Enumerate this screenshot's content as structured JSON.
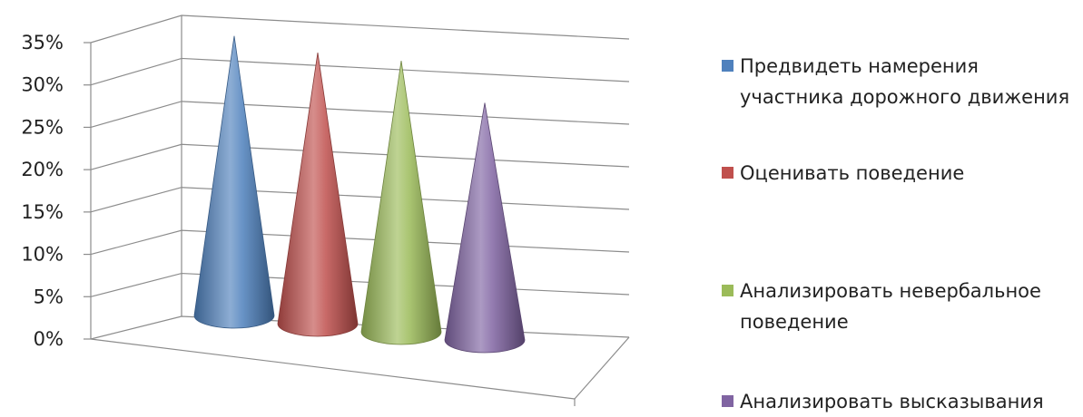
{
  "chart_data": {
    "type": "bar",
    "bar_shape": "3d-cone",
    "categories": [
      ""
    ],
    "series": [
      {
        "name": "Предвидеть намерения участника дорожного движения",
        "color": "#4f81bd",
        "value": 33
      },
      {
        "name": "Оценивать поведение",
        "color": "#c0504d",
        "value": 32
      },
      {
        "name": "Анализировать невербальное поведение",
        "color": "#9bbb59",
        "value": 32
      },
      {
        "name": "Анализировать высказывания",
        "color": "#8064a2",
        "value": 28
      }
    ],
    "yticks": [
      "0%",
      "5%",
      "10%",
      "15%",
      "20%",
      "25%",
      "30%",
      "35%"
    ],
    "ylim": [
      0,
      35
    ],
    "grid": true,
    "legend_position": "right"
  }
}
